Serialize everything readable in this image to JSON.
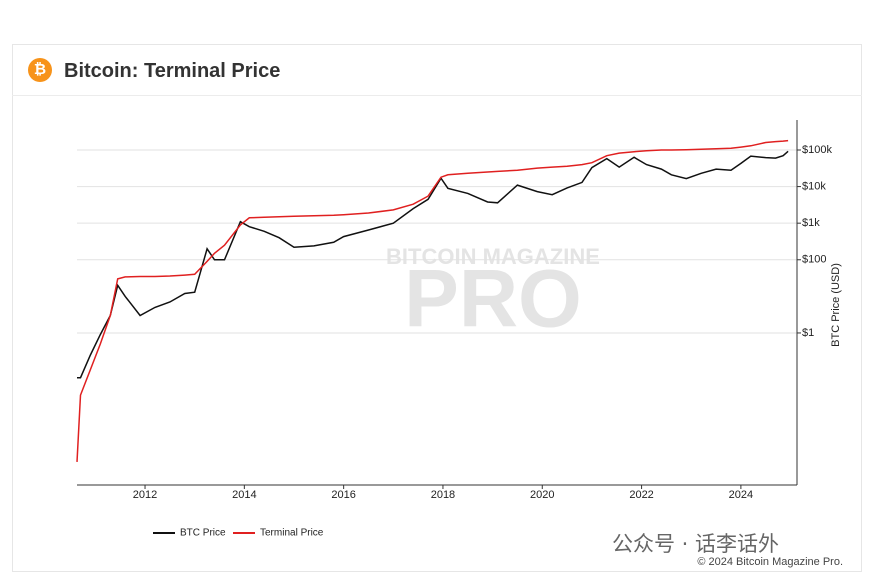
{
  "chart_data": {
    "type": "line",
    "title": "Bitcoin: Terminal Price",
    "y_label": "BTC Price (USD)",
    "watermark": [
      "BITCOIN MAGAZINE",
      "PRO"
    ],
    "log_y": true,
    "grid": true,
    "xlim": [
      2010.63,
      2025.13
    ],
    "xticks": [
      2012,
      2014,
      2016,
      2018,
      2020,
      2022,
      2024
    ],
    "ylim": [
      7e-05,
      660000
    ],
    "yticks": [
      {
        "value": 1,
        "label": "$1"
      },
      {
        "value": 100,
        "label": "$100"
      },
      {
        "value": 1000,
        "label": "$1k"
      },
      {
        "value": 10000,
        "label": "$10k"
      },
      {
        "value": 100000,
        "label": "$100k"
      }
    ],
    "x": [
      2010.63,
      2010.7,
      2010.9,
      2011.1,
      2011.3,
      2011.45,
      2011.6,
      2011.9,
      2012.2,
      2012.5,
      2012.8,
      2013.0,
      2013.25,
      2013.4,
      2013.6,
      2013.92,
      2014.1,
      2014.4,
      2014.7,
      2015.0,
      2015.4,
      2015.8,
      2016.0,
      2016.5,
      2017.0,
      2017.4,
      2017.7,
      2017.96,
      2018.1,
      2018.5,
      2018.9,
      2019.1,
      2019.5,
      2019.9,
      2020.2,
      2020.5,
      2020.8,
      2021.0,
      2021.3,
      2021.55,
      2021.85,
      2022.1,
      2022.4,
      2022.6,
      2022.9,
      2023.2,
      2023.5,
      2023.8,
      2024.0,
      2024.2,
      2024.5,
      2024.7,
      2024.85,
      2024.95
    ],
    "series": [
      {
        "name": "BTC Price",
        "color": "#111111",
        "values": [
          0.06,
          0.06,
          0.25,
          0.9,
          3,
          20,
          10,
          3,
          5,
          7,
          12,
          13,
          200,
          100,
          100,
          1100,
          800,
          600,
          400,
          220,
          240,
          300,
          430,
          650,
          1000,
          2500,
          4500,
          17000,
          9000,
          6500,
          3800,
          3600,
          11000,
          7300,
          6000,
          9200,
          13000,
          33000,
          58000,
          34000,
          63000,
          40000,
          30000,
          21000,
          16500,
          23000,
          30000,
          28000,
          43000,
          68000,
          62000,
          60000,
          70000,
          92000
        ]
      },
      {
        "name": "Terminal Price",
        "color": "#e02020",
        "values": [
          0.0003,
          0.02,
          0.1,
          0.5,
          3,
          30,
          34,
          35,
          35,
          36,
          38,
          40,
          90,
          150,
          250,
          900,
          1400,
          1450,
          1500,
          1550,
          1600,
          1650,
          1700,
          1900,
          2300,
          3300,
          5500,
          18000,
          21000,
          23000,
          25000,
          26000,
          28000,
          32000,
          34000,
          36000,
          40000,
          45000,
          70000,
          82000,
          90000,
          95000,
          100000,
          100000,
          102000,
          105000,
          108000,
          112000,
          120000,
          130000,
          160000,
          170000,
          175000,
          180000
        ]
      }
    ]
  },
  "footer": "© 2024 Bitcoin Magazine Pro.",
  "overlay": "公众号 · 话李话外"
}
